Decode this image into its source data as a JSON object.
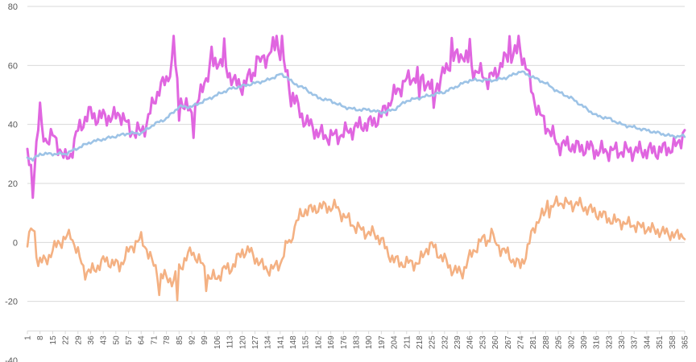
{
  "chart_data": {
    "type": "line",
    "title": "",
    "xlabel": "",
    "ylabel": "",
    "ylim": [
      -40,
      80
    ],
    "yticks": [
      -40,
      -20,
      0,
      20,
      40,
      60,
      80
    ],
    "xtick_labels": [
      "1",
      "8",
      "15",
      "22",
      "29",
      "36",
      "43",
      "50",
      "57",
      "64",
      "71",
      "78",
      "85",
      "92",
      "99",
      "106",
      "113",
      "120",
      "127",
      "134",
      "141",
      "148",
      "155",
      "162",
      "169",
      "176",
      "183",
      "190",
      "197",
      "204",
      "211",
      "218",
      "225",
      "232",
      "239",
      "246",
      "253",
      "260",
      "267",
      "274",
      "281",
      "288",
      "295",
      "302",
      "309",
      "316",
      "323",
      "330",
      "337",
      "344",
      "351",
      "358",
      "365"
    ],
    "grid": true,
    "legend": "none",
    "series": [
      {
        "color": "#e066e0",
        "anchors": [
          [
            1,
            29
          ],
          [
            4,
            22
          ],
          [
            7,
            39
          ],
          [
            11,
            35
          ],
          [
            15,
            36
          ],
          [
            18,
            33
          ],
          [
            22,
            28
          ],
          [
            25,
            30
          ],
          [
            29,
            38
          ],
          [
            33,
            42
          ],
          [
            36,
            44
          ],
          [
            40,
            42
          ],
          [
            44,
            43
          ],
          [
            48,
            42
          ],
          [
            52,
            44
          ],
          [
            57,
            39
          ],
          [
            61,
            37
          ],
          [
            64,
            38
          ],
          [
            67,
            40
          ],
          [
            71,
            48
          ],
          [
            74,
            52
          ],
          [
            78,
            55
          ],
          [
            82,
            62
          ],
          [
            85,
            50
          ],
          [
            88,
            46
          ],
          [
            92,
            44
          ],
          [
            96,
            48
          ],
          [
            99,
            55
          ],
          [
            102,
            58
          ],
          [
            106,
            62
          ],
          [
            110,
            60
          ],
          [
            113,
            57
          ],
          [
            116,
            54
          ],
          [
            120,
            53
          ],
          [
            124,
            56
          ],
          [
            127,
            58
          ],
          [
            131,
            62
          ],
          [
            134,
            63
          ],
          [
            137,
            66
          ],
          [
            141,
            65
          ],
          [
            144,
            58
          ],
          [
            148,
            50
          ],
          [
            152,
            44
          ],
          [
            155,
            41
          ],
          [
            159,
            39
          ],
          [
            162,
            37
          ],
          [
            166,
            36
          ],
          [
            169,
            36
          ],
          [
            172,
            36
          ],
          [
            176,
            37
          ],
          [
            180,
            38
          ],
          [
            183,
            39
          ],
          [
            187,
            40
          ],
          [
            190,
            40
          ],
          [
            193,
            41
          ],
          [
            197,
            43
          ],
          [
            200,
            46
          ],
          [
            204,
            50
          ],
          [
            208,
            53
          ],
          [
            211,
            55
          ],
          [
            215,
            56
          ],
          [
            218,
            57
          ],
          [
            222,
            54
          ],
          [
            225,
            52
          ],
          [
            229,
            54
          ],
          [
            232,
            58
          ],
          [
            236,
            62
          ],
          [
            239,
            63
          ],
          [
            242,
            64
          ],
          [
            246,
            60
          ],
          [
            249,
            58
          ],
          [
            253,
            57
          ],
          [
            256,
            55
          ],
          [
            260,
            57
          ],
          [
            263,
            60
          ],
          [
            267,
            63
          ],
          [
            270,
            64
          ],
          [
            274,
            65
          ],
          [
            277,
            60
          ],
          [
            281,
            50
          ],
          [
            284,
            44
          ],
          [
            288,
            40
          ],
          [
            292,
            36
          ],
          [
            295,
            33
          ],
          [
            299,
            33
          ],
          [
            302,
            33
          ],
          [
            306,
            32
          ],
          [
            309,
            32
          ],
          [
            313,
            32
          ],
          [
            316,
            31
          ],
          [
            320,
            31
          ],
          [
            323,
            31
          ],
          [
            327,
            31
          ],
          [
            330,
            31
          ],
          [
            334,
            31
          ],
          [
            337,
            31
          ],
          [
            341,
            31
          ],
          [
            344,
            31
          ],
          [
            348,
            31
          ],
          [
            351,
            31
          ],
          [
            355,
            32
          ],
          [
            358,
            32
          ],
          [
            361,
            33
          ],
          [
            365,
            38
          ]
        ],
        "noise": 3.6,
        "spikes": [
          [
            4,
            -6
          ],
          [
            8,
            8
          ],
          [
            82,
            9
          ],
          [
            85,
            -6
          ],
          [
            93,
            -6
          ],
          [
            103,
            6
          ],
          [
            110,
            6
          ],
          [
            128,
            6
          ],
          [
            139,
            7
          ],
          [
            142,
            6
          ],
          [
            147,
            -4
          ],
          [
            218,
            -9
          ],
          [
            226,
            -7
          ],
          [
            236,
            6
          ],
          [
            246,
            8
          ],
          [
            268,
            6
          ],
          [
            273,
            6
          ]
        ]
      },
      {
        "color": "#9dc3e6",
        "anchors": [
          [
            1,
            29
          ],
          [
            4,
            28
          ],
          [
            8,
            30
          ],
          [
            15,
            30
          ],
          [
            22,
            30
          ],
          [
            29,
            32
          ],
          [
            36,
            34
          ],
          [
            43,
            35
          ],
          [
            50,
            36
          ],
          [
            57,
            37
          ],
          [
            64,
            37
          ],
          [
            71,
            40
          ],
          [
            78,
            42
          ],
          [
            85,
            46
          ],
          [
            92,
            46
          ],
          [
            99,
            48
          ],
          [
            106,
            50
          ],
          [
            113,
            52
          ],
          [
            120,
            53
          ],
          [
            127,
            54
          ],
          [
            134,
            55
          ],
          [
            141,
            57
          ],
          [
            145,
            56
          ],
          [
            148,
            54
          ],
          [
            152,
            53
          ],
          [
            155,
            52
          ],
          [
            162,
            49
          ],
          [
            169,
            48
          ],
          [
            176,
            46
          ],
          [
            183,
            45
          ],
          [
            190,
            45
          ],
          [
            197,
            44
          ],
          [
            204,
            45
          ],
          [
            211,
            48
          ],
          [
            218,
            49
          ],
          [
            225,
            50
          ],
          [
            232,
            51
          ],
          [
            239,
            53
          ],
          [
            246,
            55
          ],
          [
            253,
            55
          ],
          [
            260,
            55
          ],
          [
            267,
            56
          ],
          [
            274,
            58
          ],
          [
            281,
            56
          ],
          [
            288,
            54
          ],
          [
            295,
            51
          ],
          [
            302,
            49
          ],
          [
            309,
            46
          ],
          [
            316,
            43
          ],
          [
            323,
            42
          ],
          [
            330,
            40
          ],
          [
            337,
            39
          ],
          [
            344,
            38
          ],
          [
            351,
            37
          ],
          [
            358,
            36
          ],
          [
            365,
            36
          ]
        ],
        "noise": 0.6,
        "spikes": []
      },
      {
        "color": "#f4b183",
        "anchors": [
          [
            1,
            0
          ],
          [
            4,
            5
          ],
          [
            7,
            -7
          ],
          [
            11,
            -6
          ],
          [
            15,
            -3
          ],
          [
            18,
            0
          ],
          [
            22,
            1
          ],
          [
            25,
            3
          ],
          [
            29,
            -4
          ],
          [
            33,
            -10
          ],
          [
            36,
            -10
          ],
          [
            40,
            -8
          ],
          [
            44,
            -6
          ],
          [
            48,
            -7
          ],
          [
            52,
            -8
          ],
          [
            57,
            -3
          ],
          [
            61,
            0
          ],
          [
            64,
            1
          ],
          [
            67,
            -2
          ],
          [
            71,
            -8
          ],
          [
            74,
            -11
          ],
          [
            78,
            -12
          ],
          [
            82,
            -13
          ],
          [
            85,
            -9
          ],
          [
            88,
            -6
          ],
          [
            92,
            -3
          ],
          [
            96,
            -6
          ],
          [
            99,
            -9
          ],
          [
            102,
            -12
          ],
          [
            106,
            -12
          ],
          [
            110,
            -9
          ],
          [
            113,
            -9
          ],
          [
            116,
            -7
          ],
          [
            120,
            -3
          ],
          [
            124,
            -3
          ],
          [
            127,
            -5
          ],
          [
            131,
            -8
          ],
          [
            134,
            -9
          ],
          [
            137,
            -9
          ],
          [
            141,
            -7
          ],
          [
            144,
            -2
          ],
          [
            148,
            4
          ],
          [
            152,
            9
          ],
          [
            155,
            11
          ],
          [
            159,
            11
          ],
          [
            162,
            12
          ],
          [
            166,
            12
          ],
          [
            169,
            12
          ],
          [
            172,
            12
          ],
          [
            176,
            9
          ],
          [
            180,
            7
          ],
          [
            183,
            5
          ],
          [
            187,
            4
          ],
          [
            190,
            3
          ],
          [
            193,
            3
          ],
          [
            197,
            1
          ],
          [
            200,
            -3
          ],
          [
            204,
            -6
          ],
          [
            208,
            -7
          ],
          [
            211,
            -7
          ],
          [
            215,
            -7
          ],
          [
            218,
            -7
          ],
          [
            222,
            -2
          ],
          [
            225,
            -1
          ],
          [
            229,
            -4
          ],
          [
            232,
            -6
          ],
          [
            236,
            -9
          ],
          [
            239,
            -10
          ],
          [
            242,
            -10
          ],
          [
            246,
            -5
          ],
          [
            249,
            -2
          ],
          [
            253,
            1
          ],
          [
            256,
            1
          ],
          [
            260,
            0
          ],
          [
            263,
            -2
          ],
          [
            267,
            -4
          ],
          [
            270,
            -6
          ],
          [
            274,
            -8
          ],
          [
            277,
            -4
          ],
          [
            281,
            4
          ],
          [
            284,
            8
          ],
          [
            288,
            10
          ],
          [
            292,
            12
          ],
          [
            295,
            14
          ],
          [
            299,
            13
          ],
          [
            302,
            13
          ],
          [
            306,
            13
          ],
          [
            309,
            12
          ],
          [
            313,
            11
          ],
          [
            316,
            10
          ],
          [
            320,
            9
          ],
          [
            323,
            8
          ],
          [
            327,
            7
          ],
          [
            330,
            7
          ],
          [
            334,
            6
          ],
          [
            337,
            6
          ],
          [
            341,
            5
          ],
          [
            344,
            5
          ],
          [
            348,
            4
          ],
          [
            351,
            4
          ],
          [
            355,
            3
          ],
          [
            358,
            3
          ],
          [
            361,
            2
          ],
          [
            365,
            3
          ]
        ],
        "noise": 2.7,
        "spikes": [
          [
            5,
            2
          ],
          [
            74,
            -6
          ],
          [
            84,
            -9
          ],
          [
            100,
            -4
          ],
          [
            147,
            -3
          ],
          [
            258,
            5
          ],
          [
            289,
            4
          ]
        ]
      }
    ]
  }
}
